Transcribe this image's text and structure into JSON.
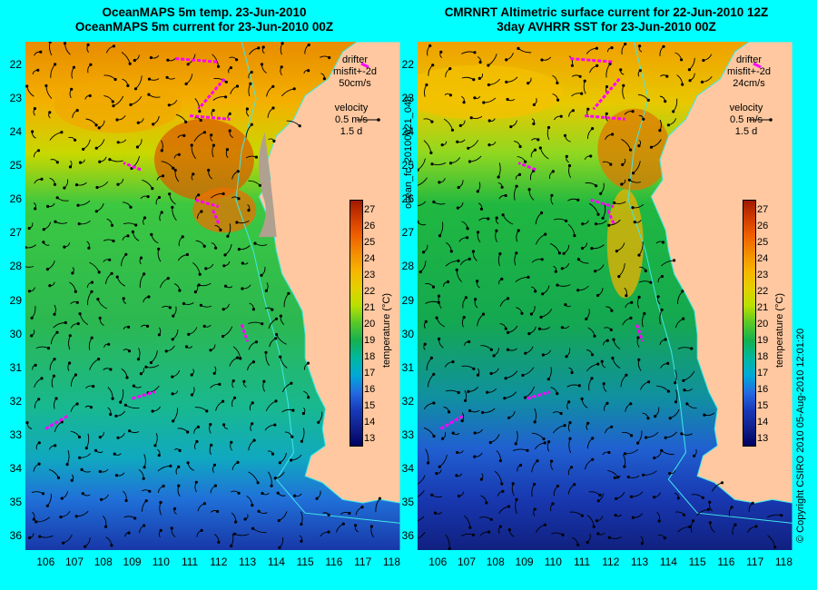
{
  "left": {
    "title_line1": "OceanMAPS 5m temp. 23-Jun-2010",
    "title_line2": "OceanMAPS 5m current for 23-Jun-2010 00Z",
    "drifter_label": "drifter",
    "drifter_misfit": "misfit+-2d",
    "drifter_speed": "50cm/s",
    "velocity_label": "velocity",
    "velocity_value": "0.5 m/s",
    "velocity_days": "1.5 d",
    "product_id": "ocean_fc_20100621_048"
  },
  "right": {
    "title_line1": "CMRNRT Altimetric surface current for 22-Jun-2010 12Z",
    "title_line2": "3day AVHRR SST for 23-Jun-2010 00Z",
    "drifter_label": "drifter",
    "drifter_misfit": "misfit+-2d",
    "drifter_speed": "24cm/s",
    "velocity_label": "velocity",
    "velocity_value": "0.5 m/s",
    "velocity_days": "1.5 d",
    "copyright": "© Copyright CSIRO 2010   05-Aug-2010 12:01:20"
  },
  "map": {
    "lon_ticks": [
      "106",
      "107",
      "108",
      "109",
      "110",
      "111",
      "112",
      "113",
      "114",
      "115",
      "116",
      "117",
      "118"
    ],
    "lat_ticks": [
      "22",
      "23",
      "24",
      "25",
      "26",
      "27",
      "28",
      "29",
      "30",
      "31",
      "32",
      "33",
      "34",
      "35",
      "36"
    ],
    "lon_range": [
      105.3,
      118.3
    ],
    "lat_range": [
      21.3,
      36.4
    ]
  },
  "colorbar": {
    "title": "temperature (°C)",
    "ticks": [
      "27",
      "26",
      "25",
      "24",
      "23",
      "22",
      "21",
      "20",
      "19",
      "18",
      "17",
      "16",
      "15",
      "14",
      "13"
    ],
    "colors": [
      "#a01800",
      "#d03c00",
      "#f06000",
      "#f48c00",
      "#f8b400",
      "#e4d000",
      "#b8e000",
      "#58c828",
      "#14b050",
      "#00b8a0",
      "#00a8d8",
      "#2468e0",
      "#1838b8",
      "#10208c",
      "#000060"
    ]
  },
  "colors": {
    "background": "#00ffff",
    "land": "#ffc8a0",
    "vector": "#000000",
    "drifter": "#ff00ff",
    "bathymetry": "#40e8e8"
  }
}
